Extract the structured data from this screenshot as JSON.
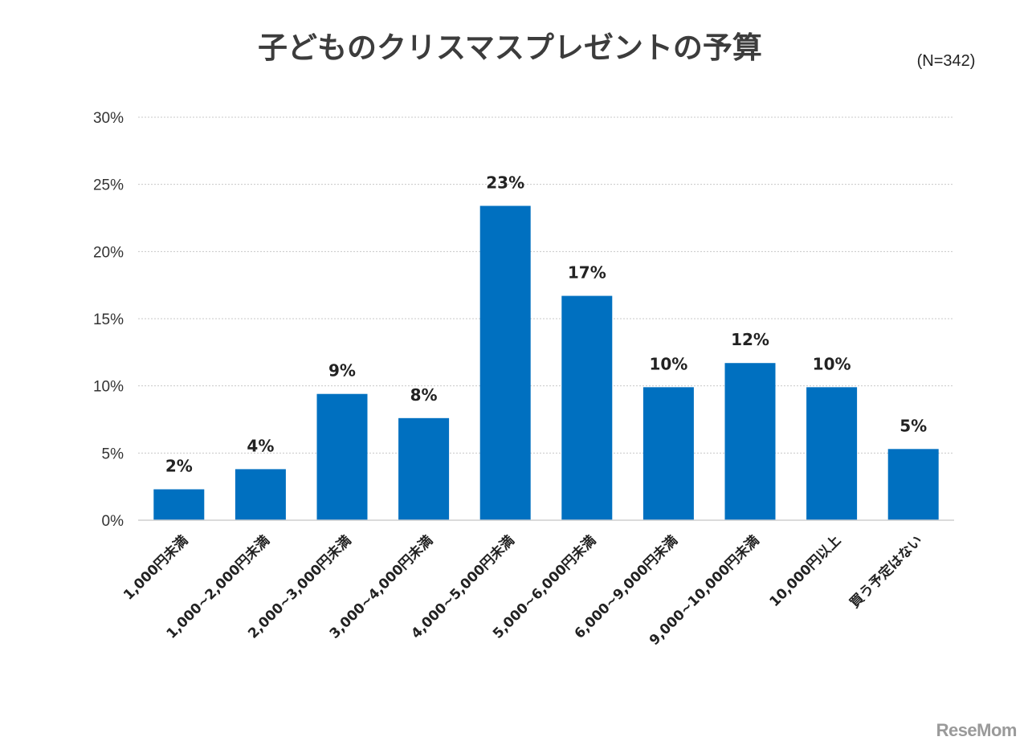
{
  "chart_data": {
    "type": "bar",
    "title": "子どものクリスマスプレゼントの予算",
    "sample_size": "(N=342)",
    "categories": [
      "1,000円未満",
      "1,000~2,000円未満",
      "2,000~3,000円未満",
      "3,000~4,000円未満",
      "4,000~5,000円未満",
      "5,000~6,000円未満",
      "6,000~9,000円未満",
      "9,000~10,000円未満",
      "10,000円以上",
      "買う予定はない"
    ],
    "values": [
      2.3,
      3.8,
      9.4,
      7.6,
      23.4,
      16.7,
      9.9,
      11.7,
      9.9,
      5.3
    ],
    "data_labels": [
      "2%",
      "4%",
      "9%",
      "8%",
      "23%",
      "17%",
      "10%",
      "12%",
      "10%",
      "5%"
    ],
    "y_ticks": [
      "0%",
      "5%",
      "10%",
      "15%",
      "20%",
      "25%",
      "30%"
    ],
    "ylim": [
      0,
      30
    ],
    "xlabel": "",
    "ylabel": "",
    "grid": true,
    "bar_color": "#0070C0",
    "grid_color": "#c8c8c8",
    "text_color": "#333333",
    "watermark": "ReseMom"
  }
}
